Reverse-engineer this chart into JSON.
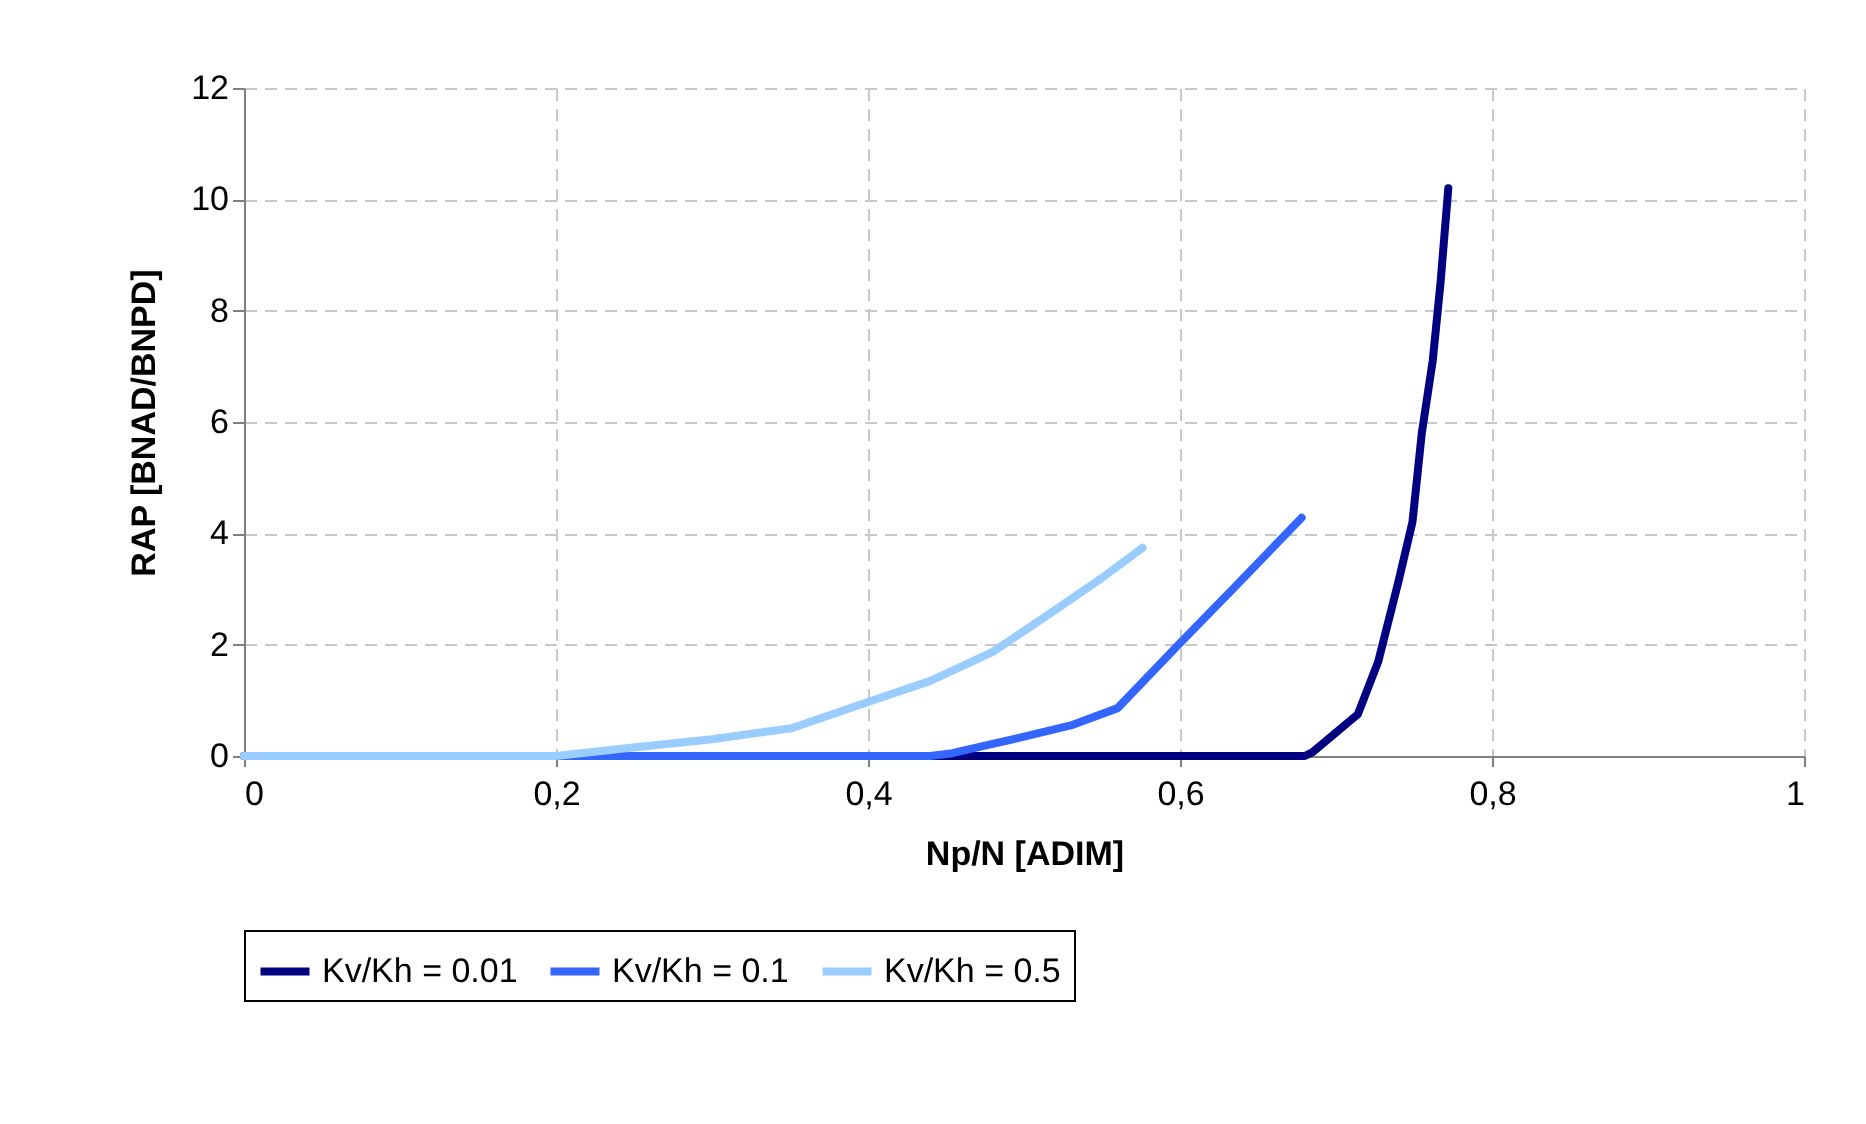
{
  "chart_data": {
    "type": "line",
    "xlabel": "Np/N [ADIM]",
    "ylabel": "RAP [BNAD/BNPD]",
    "xlim": [
      0,
      1
    ],
    "ylim": [
      0,
      12
    ],
    "xticks": [
      0,
      {
        "value": 0.2,
        "label": "0,2"
      },
      {
        "value": 0.4,
        "label": "0,4"
      },
      {
        "value": 0.6,
        "label": "0,6"
      },
      {
        "value": 0.8,
        "label": "0,8"
      },
      1
    ],
    "yticks": [
      0,
      2,
      4,
      6,
      8,
      10,
      12
    ],
    "grid": true,
    "legend": "bottom",
    "marker": "none",
    "line_style": "solid",
    "series": [
      {
        "name": "Kv/Kh = 0.01",
        "color": "#000080",
        "x": [
          0,
          0.5,
          0.68,
          0.685,
          0.714,
          0.727,
          0.74,
          0.749,
          0.755,
          0.762,
          0.767,
          0.772
        ],
        "values": [
          0,
          0,
          0,
          0.07,
          0.75,
          1.69,
          3.13,
          4.2,
          5.8,
          7.1,
          8.5,
          10.2
        ]
      },
      {
        "name": "Kv/Kh = 0.1",
        "color": "#3366ff",
        "x": [
          0,
          0.3,
          0.44,
          0.454,
          0.496,
          0.53,
          0.56,
          0.599,
          0.637,
          0.678
        ],
        "values": [
          0,
          0,
          0,
          0.05,
          0.32,
          0.55,
          0.86,
          2.0,
          3.09,
          4.28
        ]
      },
      {
        "name": "Kv/Kh = 0.5",
        "color": "#99ccff",
        "x": [
          0,
          0.2,
          0.245,
          0.3,
          0.351,
          0.4,
          0.44,
          0.48,
          0.522,
          0.55,
          0.576
        ],
        "values": [
          0,
          0,
          0.14,
          0.3,
          0.5,
          0.97,
          1.35,
          1.87,
          2.66,
          3.2,
          3.74
        ]
      }
    ]
  }
}
